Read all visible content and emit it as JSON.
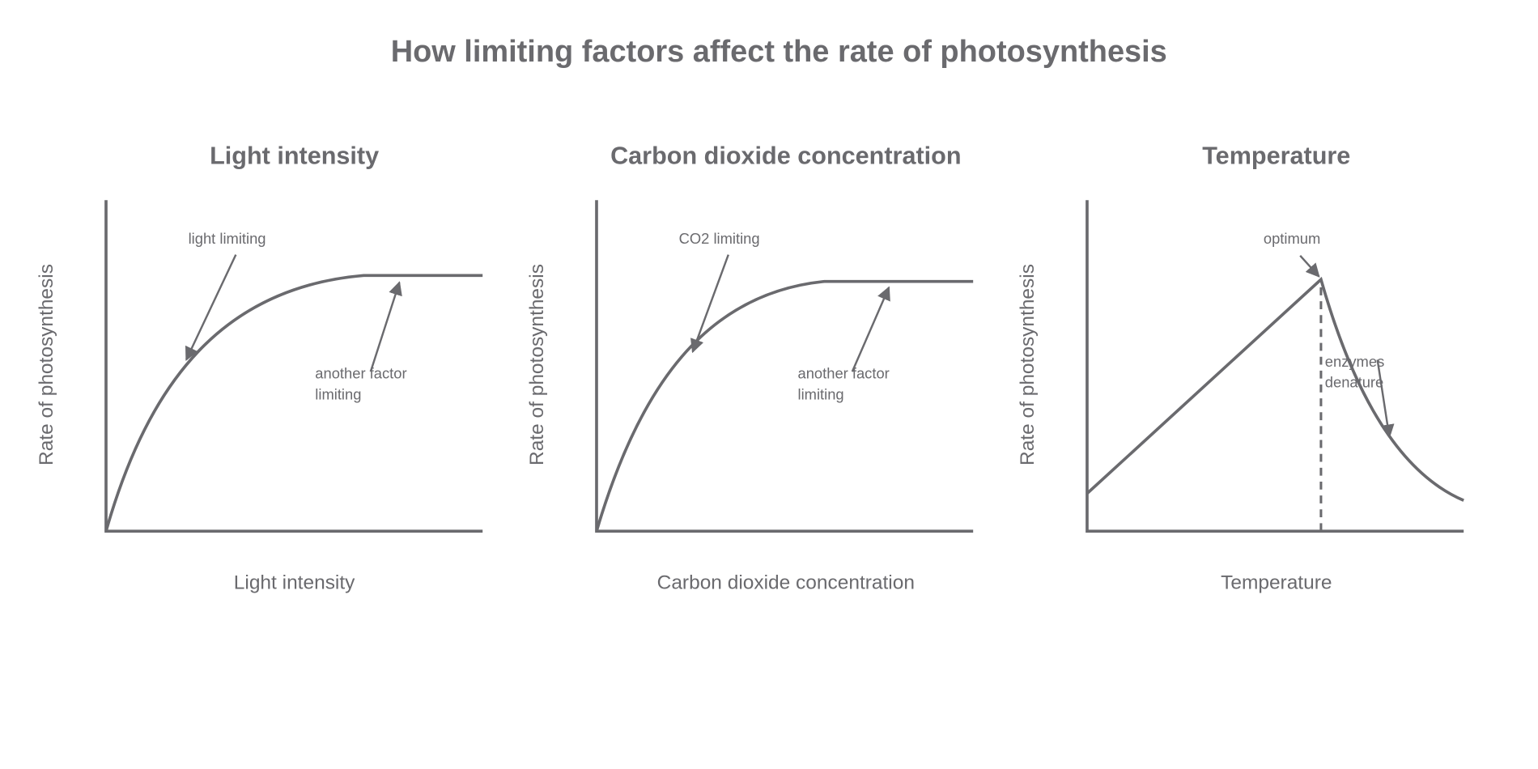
{
  "title": "How limiting factors affect the rate of photosynthesis",
  "panels": [
    {
      "title": "Light intensity",
      "x_label": "Light intensity",
      "y_label": "Rate of photosynthesis",
      "annotations": [
        {
          "lines": [
            "light limiting"
          ]
        },
        {
          "lines": [
            "another factor",
            "limiting"
          ]
        }
      ]
    },
    {
      "title": "Carbon dioxide concentration",
      "x_label": "Carbon dioxide concentration",
      "y_label": "Rate of photosynthesis",
      "annotations": [
        {
          "lines": [
            "CO2 limiting"
          ]
        },
        {
          "lines": [
            "another factor",
            "limiting"
          ]
        }
      ]
    },
    {
      "title": "Temperature",
      "x_label": "Temperature",
      "y_label": "Rate of photosynthesis",
      "annotations": [
        {
          "lines": [
            "optimum"
          ]
        },
        {
          "lines": [
            "enzymes",
            "denature"
          ]
        }
      ]
    }
  ]
}
